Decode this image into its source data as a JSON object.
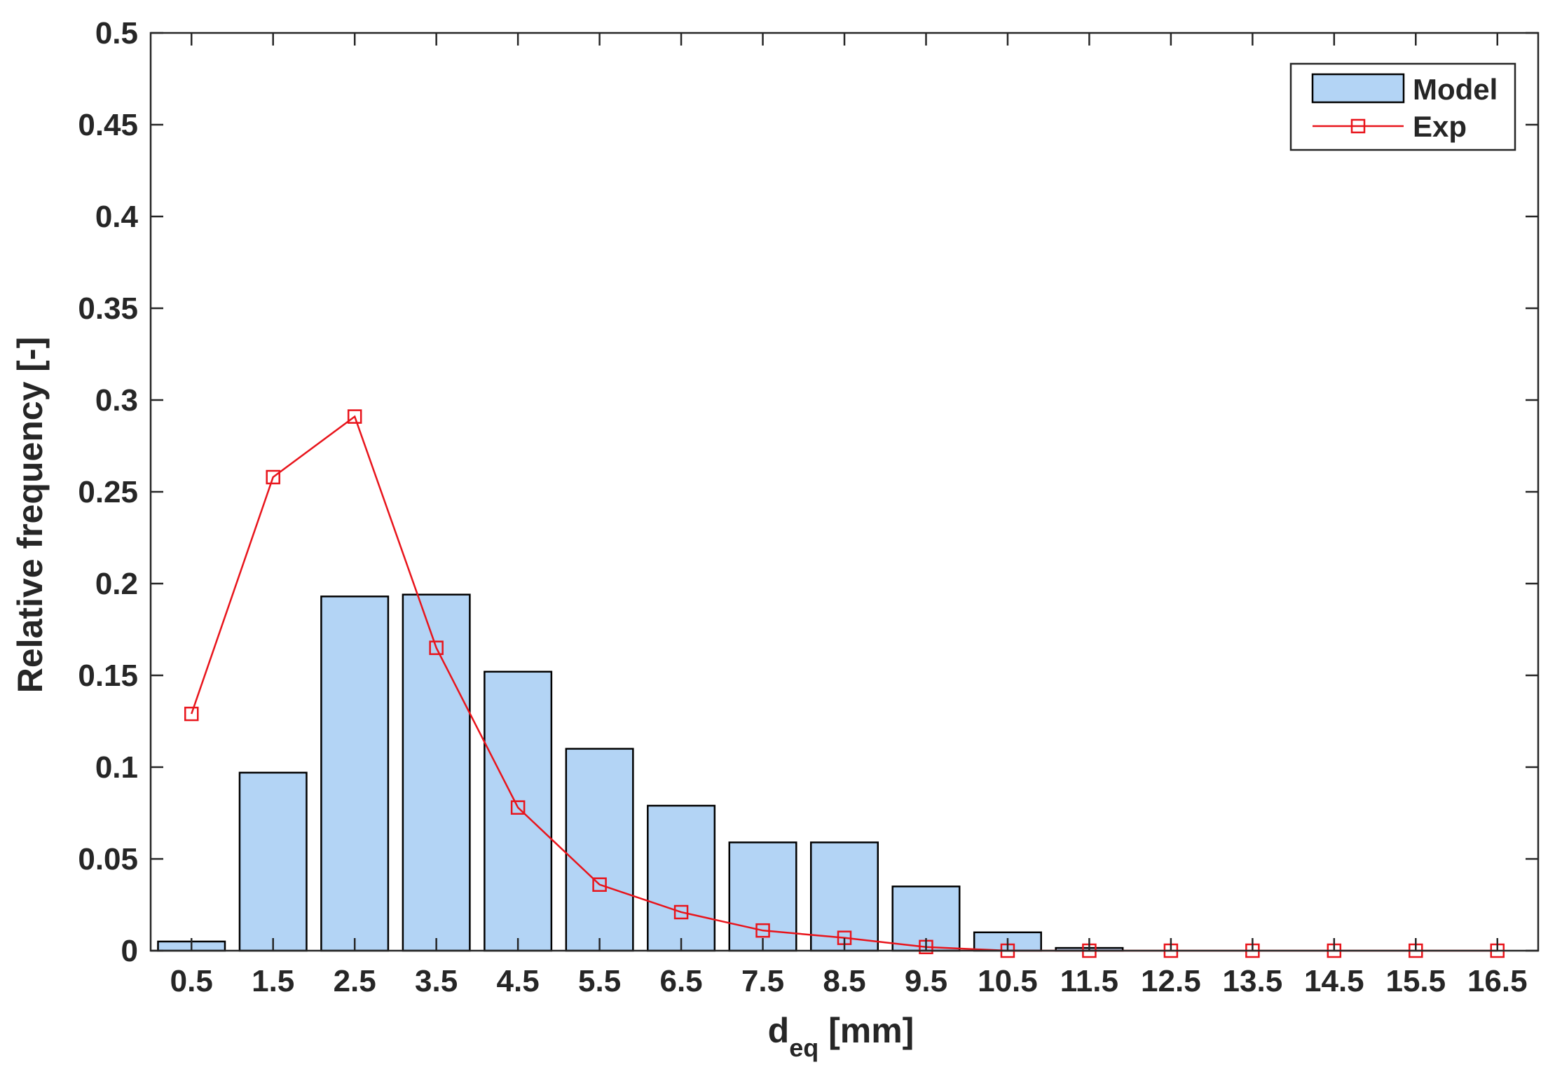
{
  "chart_data": {
    "type": "bar",
    "categories": [
      "0.5",
      "1.5",
      "2.5",
      "3.5",
      "4.5",
      "5.5",
      "6.5",
      "7.5",
      "8.5",
      "9.5",
      "10.5",
      "11.5",
      "12.5",
      "13.5",
      "14.5",
      "15.5",
      "16.5"
    ],
    "series": [
      {
        "name": "Model",
        "type": "bar",
        "color": "#b3d4f5",
        "values": [
          0.005,
          0.097,
          0.193,
          0.194,
          0.152,
          0.11,
          0.079,
          0.059,
          0.059,
          0.035,
          0.01,
          0.0015,
          0,
          0,
          0,
          0,
          0
        ]
      },
      {
        "name": "Exp",
        "type": "line",
        "marker": "square",
        "color": "#e8141b",
        "values": [
          0.129,
          0.258,
          0.291,
          0.165,
          0.078,
          0.036,
          0.021,
          0.011,
          0.007,
          0.002,
          0,
          0,
          0,
          0,
          0,
          0,
          0
        ]
      }
    ],
    "xlabel_main": "d",
    "xlabel_sub": "eq",
    "xlabel_unit": " [mm]",
    "ylabel": "Relative frequency [-]",
    "ylim": [
      0,
      0.5
    ],
    "yticks": [
      "0",
      "0.05",
      "0.1",
      "0.15",
      "0.2",
      "0.25",
      "0.3",
      "0.35",
      "0.4",
      "0.45",
      "0.5"
    ],
    "ytick_values": [
      0,
      0.05,
      0.1,
      0.15,
      0.2,
      0.25,
      0.3,
      0.35,
      0.4,
      0.45,
      0.5
    ],
    "grid": false,
    "legend_position": "top-right"
  }
}
